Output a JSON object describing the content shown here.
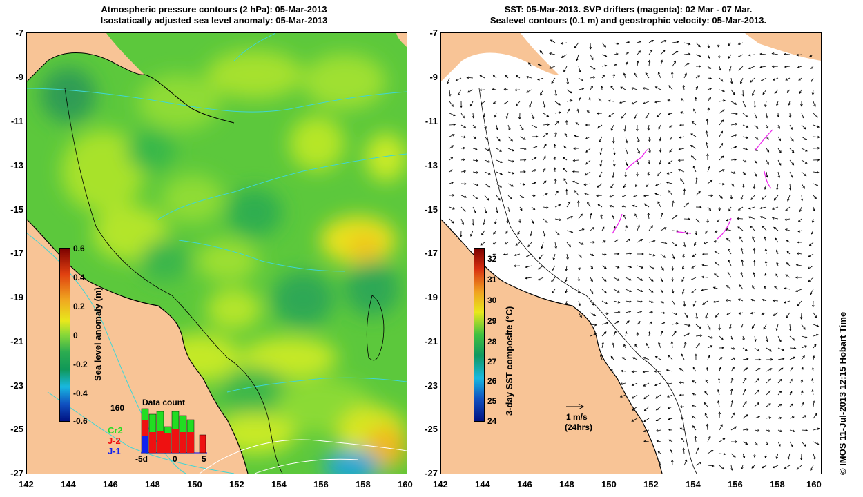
{
  "left_panel": {
    "title_line1": "Atmospheric pressure contours (2 hPa): 05-Mar-2013",
    "title_line2": "Isostatically adjusted sea level anomaly: 05-Mar-2013",
    "colorbar": {
      "label": "Sea level anomaly (m)",
      "ticks": [
        "0.6",
        "0.4",
        "0.2",
        "0",
        "-0.2",
        "-0.4",
        "-0.6"
      ]
    },
    "data_count": {
      "title": "Data count",
      "max_label": "160",
      "x_ticks": [
        "-5d",
        "0",
        "5"
      ],
      "legend": [
        {
          "label": "Cr2",
          "color": "#22dd22"
        },
        {
          "label": "J-2",
          "color": "#ee1111"
        },
        {
          "label": "J-1",
          "color": "#1122ee"
        }
      ]
    }
  },
  "right_panel": {
    "title_line1": "SST: 05-Mar-2013. SVP drifters (magenta): 02 Mar - 07 Mar.",
    "title_line2": "Sealevel contours (0.1 m) and geostrophic velocity: 05-Mar-2013.",
    "colorbar": {
      "label": "3-day SST composite (°C)",
      "ticks": [
        "32",
        "31",
        "30",
        "29",
        "28",
        "27",
        "26",
        "25",
        "24"
      ]
    },
    "scale_arrow": {
      "line1": "1 m/s",
      "line2": "(24hrs)"
    }
  },
  "axes": {
    "x_ticks": [
      "142",
      "144",
      "146",
      "148",
      "150",
      "152",
      "154",
      "156",
      "158",
      "160"
    ],
    "y_ticks": [
      "-7",
      "-9",
      "-11",
      "-13",
      "-15",
      "-17",
      "-19",
      "-21",
      "-23",
      "-25",
      "-27"
    ]
  },
  "credit": "© IMOS 11-Jul-2013 12:15 Hobart Time",
  "colors": {
    "land": "#f8c496",
    "sea_level_base": "#5cc83c",
    "coastline": "#000000",
    "pressure_contours": "#3fd6d6",
    "drifters": "#ee22ee"
  }
}
